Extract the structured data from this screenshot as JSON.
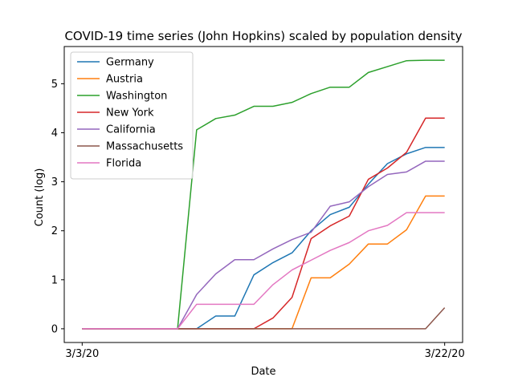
{
  "chart_data": {
    "type": "line",
    "title": "COVID-19 time series (John Hopkins) scaled by population density",
    "xlabel": "Date",
    "ylabel": "Count (log)",
    "x": [
      "3/3/20",
      "3/4/20",
      "3/5/20",
      "3/6/20",
      "3/7/20",
      "3/8/20",
      "3/9/20",
      "3/10/20",
      "3/11/20",
      "3/12/20",
      "3/13/20",
      "3/14/20",
      "3/15/20",
      "3/16/20",
      "3/17/20",
      "3/18/20",
      "3/19/20",
      "3/20/20",
      "3/21/20",
      "3/22/20"
    ],
    "xticks": [
      "3/3/20",
      "3/22/20"
    ],
    "yticks": [
      0,
      1,
      2,
      3,
      4,
      5
    ],
    "ylim": [
      -0.28,
      5.76
    ],
    "legend_position": "upper-left",
    "series": [
      {
        "name": "Germany",
        "color": "#1f77b4",
        "values": [
          0,
          0,
          0,
          0,
          0,
          0,
          0,
          0.26,
          0.26,
          1.1,
          1.35,
          1.55,
          2.0,
          2.33,
          2.48,
          2.95,
          3.37,
          3.57,
          3.7,
          3.7
        ]
      },
      {
        "name": "Austria",
        "color": "#ff7f0e",
        "values": [
          0,
          0,
          0,
          0,
          0,
          0,
          0,
          0,
          0,
          0,
          0,
          0,
          1.04,
          1.04,
          1.32,
          1.73,
          1.73,
          2.02,
          2.71,
          2.71
        ]
      },
      {
        "name": "Washington",
        "color": "#2ca02c",
        "values": [
          0,
          0,
          0,
          0,
          0,
          0,
          4.06,
          4.29,
          4.36,
          4.54,
          4.54,
          4.62,
          4.8,
          4.93,
          4.93,
          5.23,
          5.35,
          5.47,
          5.48,
          5.48
        ]
      },
      {
        "name": "New York",
        "color": "#d62728",
        "values": [
          0,
          0,
          0,
          0,
          0,
          0,
          0,
          0,
          0,
          0,
          0.22,
          0.64,
          1.84,
          2.1,
          2.3,
          3.05,
          3.28,
          3.6,
          4.3,
          4.3
        ]
      },
      {
        "name": "California",
        "color": "#9467bd",
        "values": [
          0,
          0,
          0,
          0,
          0,
          0,
          0.7,
          1.12,
          1.41,
          1.41,
          1.63,
          1.82,
          1.97,
          2.5,
          2.59,
          2.9,
          3.15,
          3.2,
          3.42,
          3.42
        ]
      },
      {
        "name": "Massachusetts",
        "color": "#8c564b",
        "values": [
          0,
          0,
          0,
          0,
          0,
          0,
          0,
          0,
          0,
          0,
          0,
          0,
          0,
          0,
          0,
          0,
          0,
          0,
          0,
          0.43
        ]
      },
      {
        "name": "Florida",
        "color": "#e377c2",
        "values": [
          0,
          0,
          0,
          0,
          0,
          0,
          0.5,
          0.5,
          0.5,
          0.5,
          0.9,
          1.2,
          1.4,
          1.6,
          1.76,
          2.0,
          2.11,
          2.37,
          2.37,
          2.37
        ]
      }
    ]
  }
}
